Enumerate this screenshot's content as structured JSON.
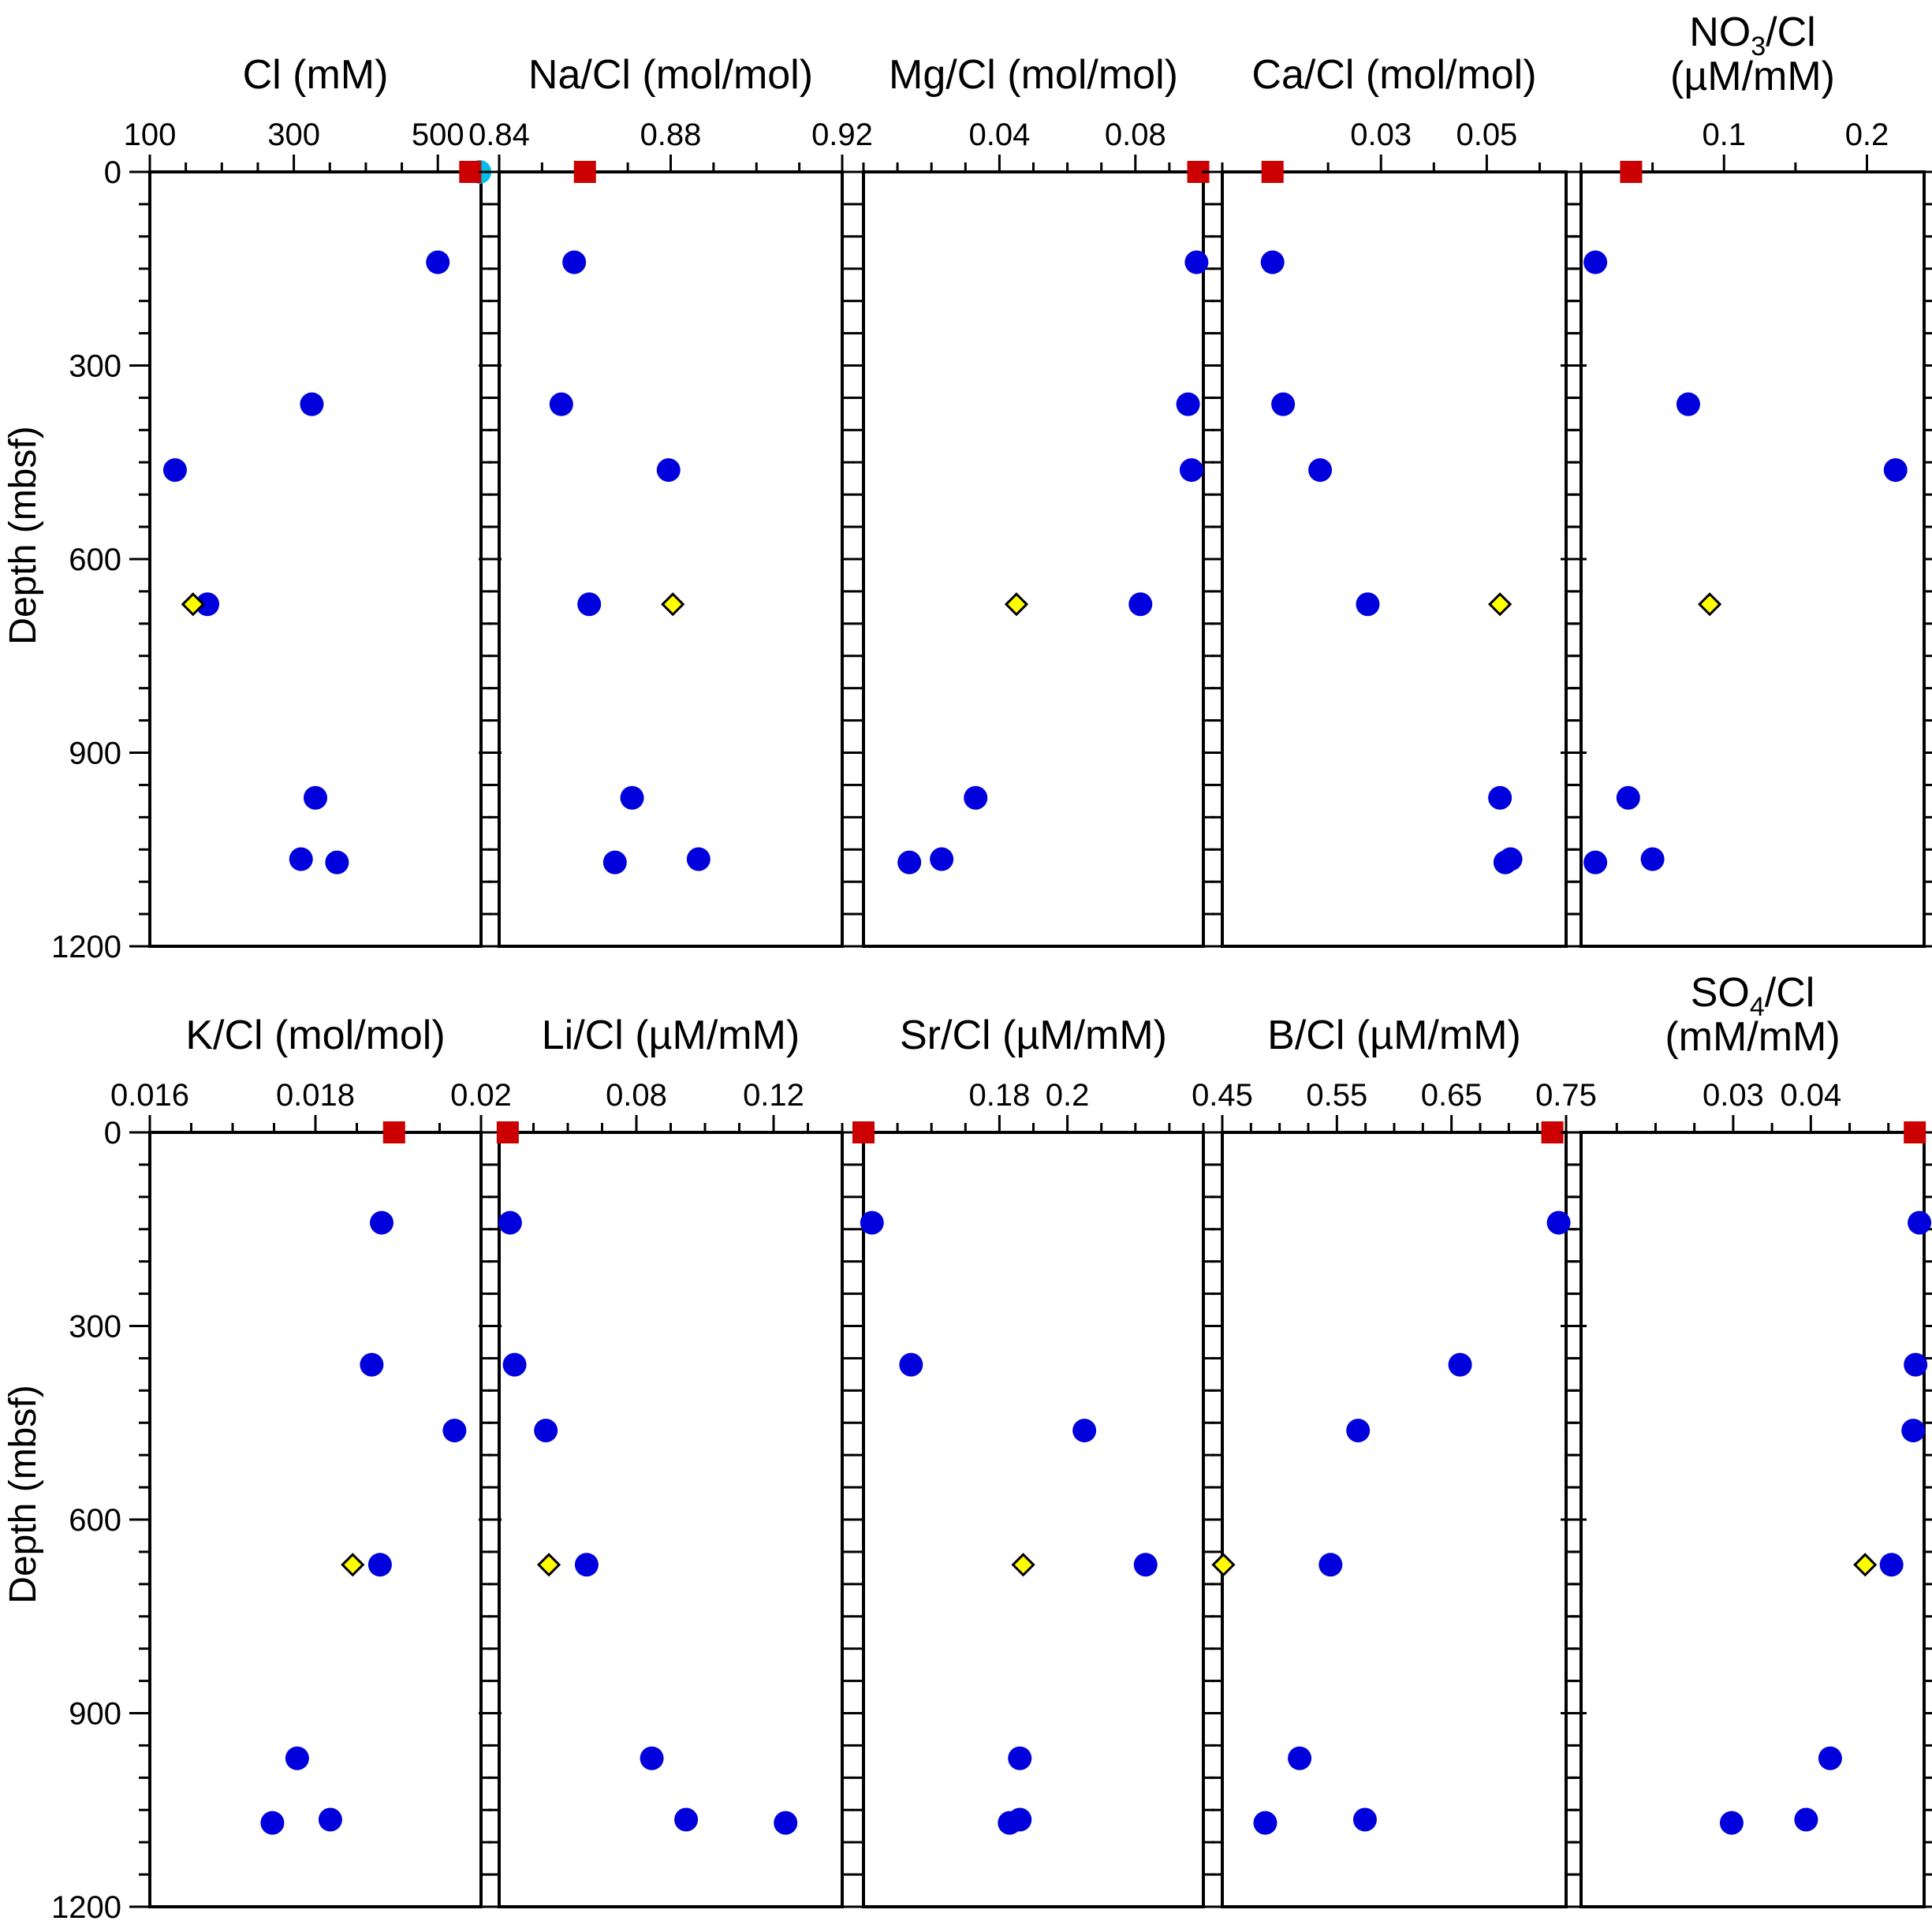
{
  "ylabel": "Depth (mbsf)",
  "yticks": [
    "0",
    "300",
    "600",
    "900",
    "1200"
  ],
  "colors": {
    "borehole": "#0000dd",
    "seawater": "#cc0000",
    "reference": "#ffff00",
    "cl_extra": "#00bfe6"
  },
  "chart_data": [
    {
      "type": "scatter",
      "title_line1": "Cl (mM)",
      "title_line2": "",
      "xlim": [
        100,
        560
      ],
      "xticks": [
        "100",
        "300",
        "500"
      ],
      "xtick_values": [
        100,
        300,
        500
      ],
      "minor_step": 50,
      "ylim": [
        0,
        1200
      ],
      "borehole": [
        [
          500,
          140
        ],
        [
          325,
          360
        ],
        [
          135,
          462
        ],
        [
          180,
          670
        ],
        [
          330,
          970
        ],
        [
          310,
          1065
        ],
        [
          360,
          1070
        ]
      ],
      "seawater": [
        [
          545,
          0
        ]
      ],
      "reference": [
        [
          160,
          670
        ]
      ],
      "cl_extra": [
        [
          558,
          0
        ]
      ]
    },
    {
      "type": "scatter",
      "title_line1": "Na/Cl (mol/mol)",
      "title_line2": "",
      "xlim": [
        0.84,
        0.92
      ],
      "xticks": [
        "0.84",
        "0.88",
        "0.92"
      ],
      "xtick_values": [
        0.84,
        0.88,
        0.92
      ],
      "minor_step": 0.01,
      "ylim": [
        0,
        1200
      ],
      "borehole": [
        [
          0.8575,
          140
        ],
        [
          0.8545,
          360
        ],
        [
          0.8795,
          462
        ],
        [
          0.861,
          670
        ],
        [
          0.871,
          970
        ],
        [
          0.867,
          1070
        ],
        [
          0.8865,
          1065
        ]
      ],
      "seawater": [
        [
          0.86,
          0
        ]
      ],
      "reference": [
        [
          0.8805,
          670
        ]
      ]
    },
    {
      "type": "scatter",
      "title_line1": "Mg/Cl (mol/mol)",
      "title_line2": "",
      "xlim": [
        0.0,
        0.1
      ],
      "xticks": [
        "0.04",
        "0.08"
      ],
      "xtick_values": [
        0.04,
        0.08
      ],
      "minor_step": 0.01,
      "ylim": [
        0,
        1200
      ],
      "borehole": [
        [
          0.098,
          140
        ],
        [
          0.0955,
          360
        ],
        [
          0.0965,
          462
        ],
        [
          0.0815,
          670
        ],
        [
          0.033,
          970
        ],
        [
          0.023,
          1065
        ],
        [
          0.0135,
          1070
        ]
      ],
      "seawater": [
        [
          0.0985,
          0
        ]
      ],
      "reference": [
        [
          0.045,
          670
        ]
      ]
    },
    {
      "type": "scatter",
      "title_line1": "Ca/Cl (mol/mol)",
      "title_line2": "",
      "xlim": [
        0.0,
        0.065
      ],
      "xticks": [
        "0.03",
        "0.05"
      ],
      "xtick_values": [
        0.03,
        0.05
      ],
      "minor_step": 0.01,
      "ylim": [
        0,
        1200
      ],
      "borehole": [
        [
          0.0095,
          140
        ],
        [
          0.0115,
          360
        ],
        [
          0.0185,
          462
        ],
        [
          0.0275,
          670
        ],
        [
          0.0525,
          970
        ],
        [
          0.0545,
          1065
        ],
        [
          0.0535,
          1070
        ]
      ],
      "seawater": [
        [
          0.0095,
          0
        ]
      ],
      "reference": [
        [
          0.0525,
          670
        ]
      ]
    },
    {
      "type": "scatter",
      "title_line1": "NO3/Cl",
      "title_line1_sub": "3",
      "title_line2": "(µM/mM)",
      "xlim": [
        0.0,
        0.24
      ],
      "xticks": [
        "0.1",
        "0.2"
      ],
      "xtick_values": [
        0.1,
        0.2
      ],
      "minor_step": 0.05,
      "ylim": [
        0,
        1200
      ],
      "borehole": [
        [
          0.01,
          140
        ],
        [
          0.075,
          360
        ],
        [
          0.22,
          462
        ],
        [
          0.033,
          970
        ],
        [
          0.05,
          1065
        ],
        [
          0.01,
          1070
        ]
      ],
      "seawater": [
        [
          0.035,
          0
        ]
      ],
      "reference": [
        [
          0.09,
          670
        ]
      ]
    },
    {
      "type": "scatter",
      "title_line1": "K/Cl (mol/mol)",
      "title_line2": "",
      "xlim": [
        0.016,
        0.02
      ],
      "xticks": [
        "0.016",
        "0.018",
        "0.02"
      ],
      "xtick_values": [
        0.016,
        0.018,
        0.02
      ],
      "minor_step": 0.0005,
      "ylim": [
        0,
        1200
      ],
      "borehole": [
        [
          0.0188,
          140
        ],
        [
          0.01868,
          360
        ],
        [
          0.01968,
          462
        ],
        [
          0.01878,
          670
        ],
        [
          0.01778,
          970
        ],
        [
          0.01748,
          1070
        ],
        [
          0.01818,
          1065
        ]
      ],
      "seawater": [
        [
          0.01895,
          0
        ]
      ],
      "reference": [
        [
          0.01845,
          670
        ]
      ]
    },
    {
      "type": "scatter",
      "title_line1": "Li/Cl (µM/mM)",
      "title_line2": "",
      "xlim": [
        0.04,
        0.14
      ],
      "xticks": [
        "0.08",
        "0.12"
      ],
      "xtick_values": [
        0.08,
        0.12
      ],
      "minor_step": 0.01,
      "ylim": [
        0,
        1200
      ],
      "borehole": [
        [
          0.0432,
          140
        ],
        [
          0.0445,
          360
        ],
        [
          0.0536,
          462
        ],
        [
          0.0655,
          670
        ],
        [
          0.0845,
          970
        ],
        [
          0.0945,
          1065
        ],
        [
          0.1235,
          1070
        ]
      ],
      "seawater": [
        [
          0.0425,
          0
        ]
      ],
      "reference": [
        [
          0.0545,
          670
        ]
      ]
    },
    {
      "type": "scatter",
      "title_line1": "Sr/Cl  (µM/mM)",
      "title_line2": "",
      "xlim": [
        0.14,
        0.24
      ],
      "xticks": [
        "0.18",
        "0.2"
      ],
      "xtick_values": [
        0.18,
        0.2
      ],
      "minor_step": 0.01,
      "ylim": [
        0,
        1200
      ],
      "borehole": [
        [
          0.1425,
          140
        ],
        [
          0.154,
          360
        ],
        [
          0.205,
          462
        ],
        [
          0.223,
          670
        ],
        [
          0.186,
          970
        ],
        [
          0.186,
          1065
        ],
        [
          0.183,
          1070
        ]
      ],
      "seawater": [
        [
          0.14,
          0
        ]
      ],
      "reference": [
        [
          0.187,
          670
        ]
      ]
    },
    {
      "type": "scatter",
      "title_line1": "B/Cl (µM/mM)",
      "title_line2": "",
      "xlim": [
        0.45,
        0.75
      ],
      "xticks": [
        "0.45",
        "0.55",
        "0.65",
        "0.75"
      ],
      "xtick_values": [
        0.45,
        0.55,
        0.65,
        0.75
      ],
      "minor_step": 0.025,
      "ylim": [
        0,
        1200
      ],
      "borehole": [
        [
          0.7435,
          140
        ],
        [
          0.6575,
          360
        ],
        [
          0.5685,
          462
        ],
        [
          0.5445,
          670
        ],
        [
          0.5175,
          970
        ],
        [
          0.5745,
          1065
        ],
        [
          0.4875,
          1070
        ]
      ],
      "seawater": [
        [
          0.738,
          0
        ]
      ],
      "reference": [
        [
          0.451,
          670
        ]
      ]
    },
    {
      "type": "scatter",
      "title_line1": "SO4/Cl",
      "title_line1_sub": "4",
      "title_line2": "(mM/mM)",
      "xlim": [
        0.0104,
        0.0546
      ],
      "xticks": [
        "0.03",
        "0.04"
      ],
      "xtick_values": [
        0.03,
        0.04
      ],
      "minor_step": 0.005,
      "ylim": [
        0,
        1200
      ],
      "borehole": [
        [
          0.054,
          140
        ],
        [
          0.0535,
          360
        ],
        [
          0.0532,
          462
        ],
        [
          0.0504,
          670
        ],
        [
          0.0425,
          970
        ],
        [
          0.0394,
          1065
        ],
        [
          0.0298,
          1070
        ]
      ],
      "seawater": [
        [
          0.0534,
          0
        ]
      ],
      "reference": [
        [
          0.047,
          670
        ]
      ]
    }
  ]
}
